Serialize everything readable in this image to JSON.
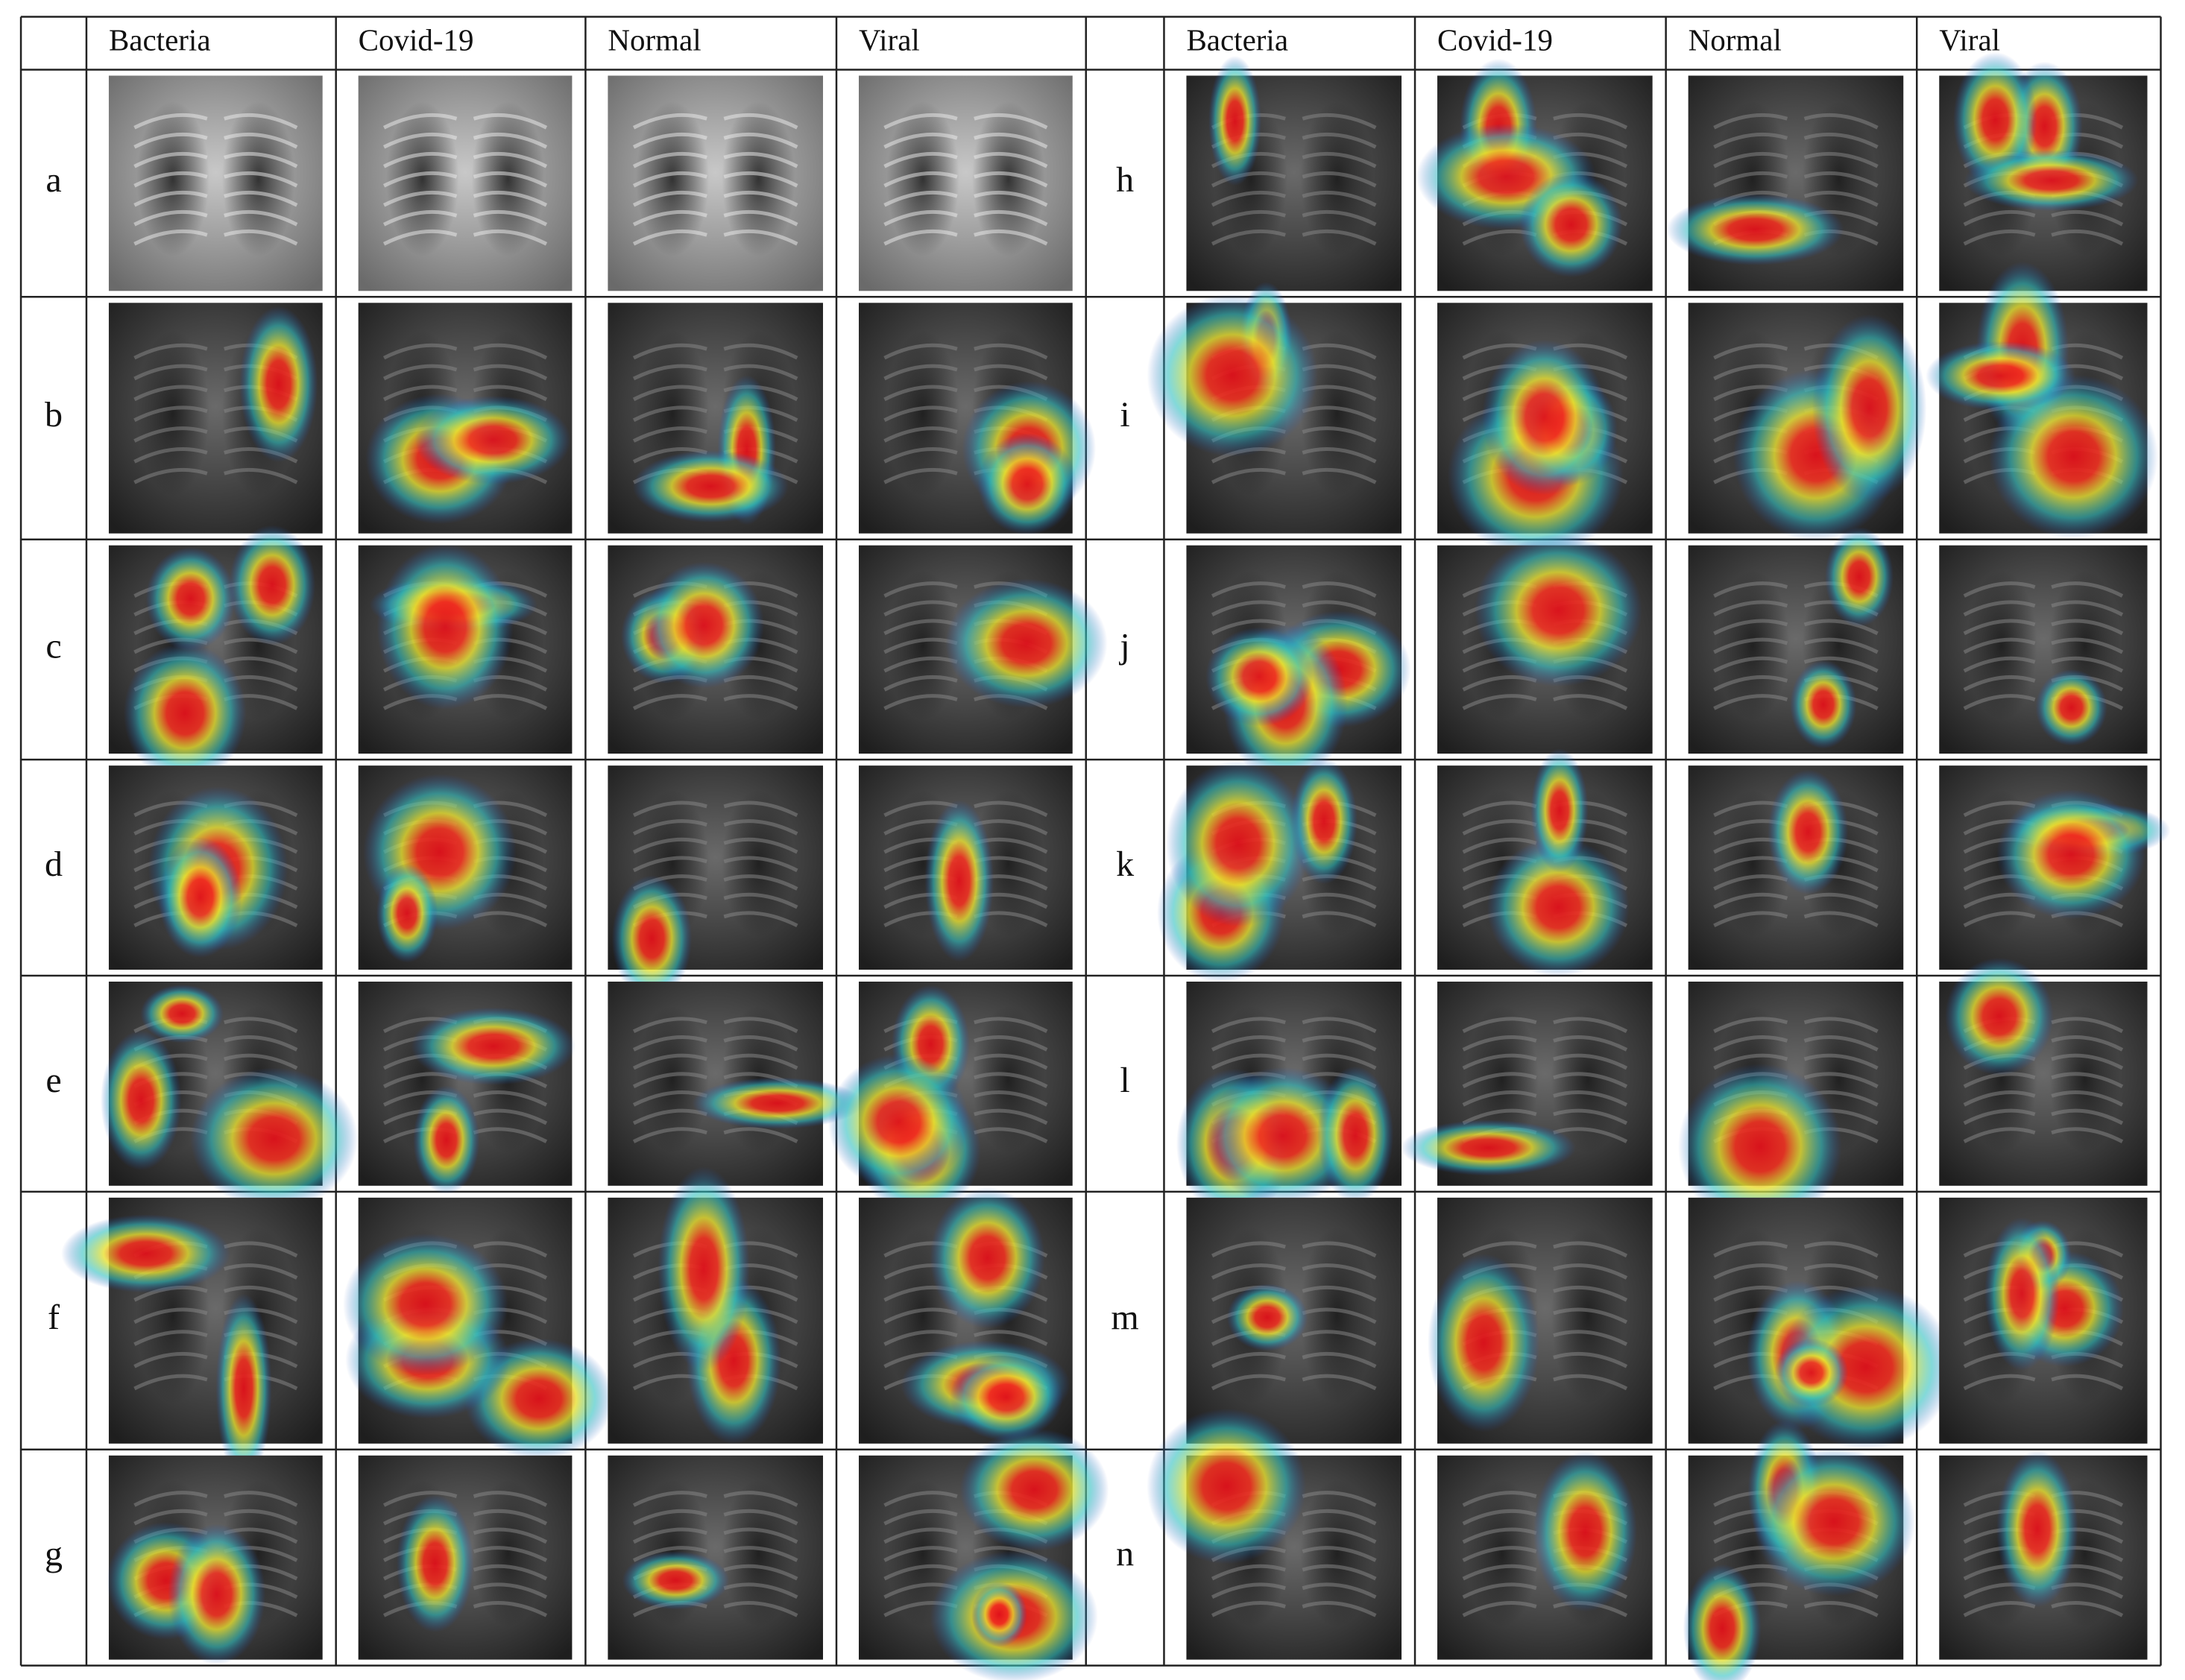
{
  "table": {
    "left": {
      "columns": [
        "Bacteria",
        "Covid-19",
        "Normal",
        "Viral"
      ],
      "rows": [
        "a",
        "b",
        "c",
        "d",
        "e",
        "f",
        "g"
      ]
    },
    "right": {
      "columns": [
        "Bacteria",
        "Covid-19",
        "Normal",
        "Viral"
      ],
      "rows": [
        "h",
        "i",
        "j",
        "k",
        "l",
        "m",
        "n"
      ]
    }
  }
}
